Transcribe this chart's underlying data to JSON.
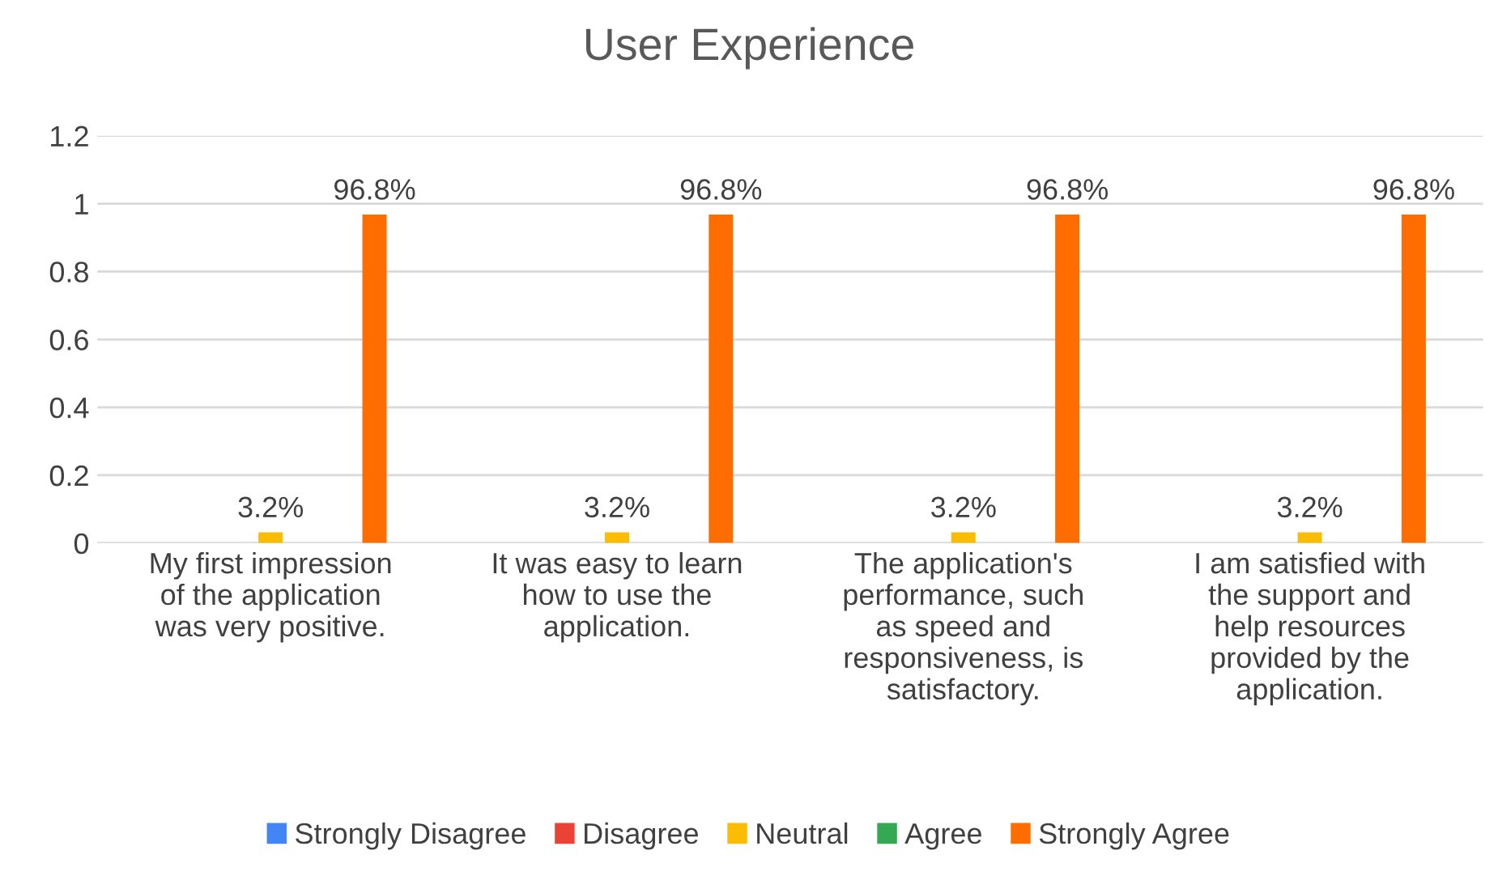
{
  "chart_data": {
    "type": "bar",
    "title": "User Experience",
    "categories": [
      "My first impression\nof the application\nwas very positive.",
      "It was easy to learn\nhow to use the\napplication.",
      "The application's\nperformance, such\nas speed and\nresponsiveness, is\nsatisfactory.",
      "I am satisfied with\nthe support and\nhelp resources\nprovided by the\napplication."
    ],
    "series": [
      {
        "name": "Strongly Disagree",
        "color": "#4285f4",
        "values": [
          0,
          0,
          0,
          0
        ],
        "value_labels": [
          null,
          null,
          null,
          null
        ]
      },
      {
        "name": "Disagree",
        "color": "#ea4335",
        "values": [
          0,
          0,
          0,
          0
        ],
        "value_labels": [
          null,
          null,
          null,
          null
        ]
      },
      {
        "name": "Neutral",
        "color": "#fbbc04",
        "values": [
          0.032,
          0.032,
          0.032,
          0.032
        ],
        "value_labels": [
          "3.2%",
          "3.2%",
          "3.2%",
          "3.2%"
        ]
      },
      {
        "name": "Agree",
        "color": "#34a853",
        "values": [
          0,
          0,
          0,
          0
        ],
        "value_labels": [
          null,
          null,
          null,
          null
        ]
      },
      {
        "name": "Strongly Agree",
        "color": "#ff6d01",
        "values": [
          0.968,
          0.968,
          0.968,
          0.968
        ],
        "value_labels": [
          "96.8%",
          "96.8%",
          "96.8%",
          "96.8%"
        ]
      }
    ],
    "ylim": [
      0,
      1.2
    ],
    "yticks": [
      0,
      0.2,
      0.4,
      0.6,
      0.8,
      1,
      1.2
    ],
    "grid": "y",
    "legend": "bottom"
  }
}
